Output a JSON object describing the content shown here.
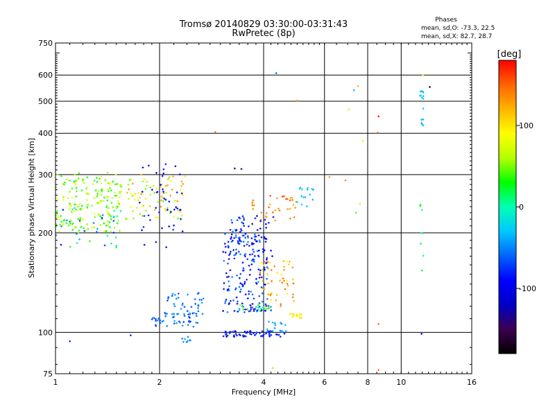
{
  "chart_data": {
    "type": "scatter",
    "title": "Tromsø 20140829 03:30:00-03:31:43",
    "subtitle": "RwPretec (8p)",
    "xlabel": "Frequency [MHz]",
    "ylabel": "Stationary phase Virtual Height [km]",
    "x_scale": "log",
    "y_scale": "log",
    "xlim": [
      1,
      16
    ],
    "ylim": [
      75,
      750
    ],
    "x_ticks": [
      1,
      2,
      4,
      6,
      8,
      10,
      16
    ],
    "y_ticks": [
      75,
      100,
      200,
      300,
      400,
      500,
      600,
      750
    ],
    "x_grid": [
      1,
      2,
      4,
      6,
      8,
      10,
      16
    ],
    "y_grid": [
      100,
      200,
      300,
      400,
      500,
      600
    ],
    "grid": true,
    "legend_header": "Phases",
    "legend_lines": [
      "mean, sd,O: -73.3, 22.5",
      "mean, sd,X:  82.7, 28.7"
    ],
    "colorbar": {
      "label": "[deg]",
      "range": [
        -180,
        180
      ],
      "ticks": [
        100,
        0,
        -100
      ],
      "colors": [
        "#000000",
        "#3c0050",
        "#0000c8",
        "#0000ff",
        "#0064ff",
        "#00c8ff",
        "#00ffb4",
        "#00ff00",
        "#b4ff00",
        "#ffff00",
        "#ffb400",
        "#ff6400",
        "#ff0000"
      ]
    },
    "point_size_mhz_km": "deg",
    "clusters": [
      {
        "f": [
          1.0,
          1.55
        ],
        "h": [
          200,
          305
        ],
        "ph": [
          20,
          90
        ],
        "n": 190
      },
      {
        "f": [
          1.0,
          1.55
        ],
        "h": [
          180,
          240
        ],
        "ph": [
          -120,
          40
        ],
        "n": 40
      },
      {
        "f": [
          1.6,
          2.4
        ],
        "h": [
          220,
          300
        ],
        "ph": [
          40,
          140
        ],
        "n": 80
      },
      {
        "f": [
          1.75,
          2.35
        ],
        "h": [
          180,
          330
        ],
        "ph": [
          -130,
          -70
        ],
        "n": 45
      },
      {
        "f": [
          1.9,
          2.6
        ],
        "h": [
          104,
          115
        ],
        "ph": [
          -80,
          -40
        ],
        "n": 45
      },
      {
        "f": [
          2.1,
          2.7
        ],
        "h": [
          113,
          132
        ],
        "ph": [
          -70,
          -40
        ],
        "n": 40
      },
      {
        "f": [
          2.3,
          2.55
        ],
        "h": [
          93,
          97
        ],
        "ph": [
          -60,
          -40
        ],
        "n": 8
      },
      {
        "f": [
          3.05,
          4.1
        ],
        "h": [
          115,
          200
        ],
        "ph": [
          -120,
          -40
        ],
        "n": 170
      },
      {
        "f": [
          3.2,
          3.55
        ],
        "h": [
          185,
          225
        ],
        "ph": [
          -100,
          -50
        ],
        "n": 30
      },
      {
        "f": [
          3.4,
          4.3
        ],
        "h": [
          116,
          121
        ],
        "ph": [
          -110,
          100
        ],
        "n": 40
      },
      {
        "f": [
          3.05,
          4.6
        ],
        "h": [
          97,
          101
        ],
        "ph": [
          -105,
          -70
        ],
        "n": 60
      },
      {
        "f": [
          4.05,
          4.65
        ],
        "h": [
          100,
          108
        ],
        "ph": [
          -50,
          -30
        ],
        "n": 18
      },
      {
        "f": [
          3.9,
          4.9
        ],
        "h": [
          120,
          165
        ],
        "ph": [
          90,
          150
        ],
        "n": 50
      },
      {
        "f": [
          4.7,
          5.2
        ],
        "h": [
          110,
          114
        ],
        "ph": [
          95,
          105
        ],
        "n": 15
      },
      {
        "f": [
          3.6,
          5.0
        ],
        "h": [
          215,
          260
        ],
        "ph": [
          120,
          160
        ],
        "n": 35
      },
      {
        "f": [
          3.6,
          4.3
        ],
        "h": [
          165,
          230
        ],
        "ph": [
          -120,
          -80
        ],
        "n": 25
      },
      {
        "f": [
          5.0,
          5.6
        ],
        "h": [
          240,
          275
        ],
        "ph": [
          -40,
          -20
        ],
        "n": 15
      },
      {
        "f": [
          11.3,
          11.6
        ],
        "h": [
          410,
          540
        ],
        "ph": [
          -40,
          -20
        ],
        "n": 15
      },
      {
        "f": [
          11.3,
          11.6
        ],
        "h": [
          150,
          260
        ],
        "ph": [
          -40,
          30
        ],
        "n": 8
      }
    ],
    "singles": [
      {
        "f": 2.9,
        "h": 403,
        "ph": 150
      },
      {
        "f": 3.3,
        "h": 313,
        "ph": -120
      },
      {
        "f": 3.45,
        "h": 312,
        "ph": -140
      },
      {
        "f": 4.35,
        "h": 608,
        "ph": -60
      },
      {
        "f": 5.0,
        "h": 502,
        "ph": 130
      },
      {
        "f": 6.2,
        "h": 295,
        "ph": 130
      },
      {
        "f": 6.9,
        "h": 288,
        "ph": 140
      },
      {
        "f": 7.05,
        "h": 472,
        "ph": 60
      },
      {
        "f": 7.3,
        "h": 540,
        "ph": -40
      },
      {
        "f": 7.5,
        "h": 555,
        "ph": 120
      },
      {
        "f": 7.4,
        "h": 230,
        "ph": 40
      },
      {
        "f": 7.6,
        "h": 245,
        "ph": 60
      },
      {
        "f": 7.75,
        "h": 380,
        "ph": 100
      },
      {
        "f": 8.6,
        "h": 450,
        "ph": 180
      },
      {
        "f": 8.55,
        "h": 402,
        "ph": 140
      },
      {
        "f": 8.6,
        "h": 106,
        "ph": 150
      },
      {
        "f": 8.6,
        "h": 77,
        "ph": 150
      },
      {
        "f": 11.55,
        "h": 600,
        "ph": 100
      },
      {
        "f": 12.1,
        "h": 552,
        "ph": -170
      },
      {
        "f": 11.45,
        "h": 99,
        "ph": -90
      },
      {
        "f": 4.25,
        "h": 78,
        "ph": 110
      },
      {
        "f": 1.65,
        "h": 98,
        "ph": -80
      },
      {
        "f": 1.1,
        "h": 94,
        "ph": -80
      }
    ]
  }
}
